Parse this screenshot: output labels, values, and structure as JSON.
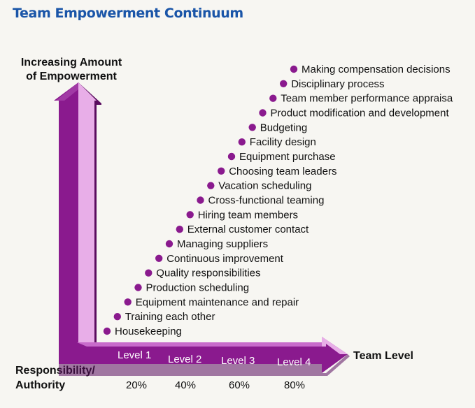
{
  "title": "Team Empowerment Continuum",
  "y_axis_label": [
    "Increasing Amount",
    "of Empowerment"
  ],
  "x_axis_label": "Team Level",
  "corner_label": [
    "Responsibility/",
    "Authority"
  ],
  "levels": [
    "Level 1",
    "Level 2",
    "Level 3",
    "Level 4"
  ],
  "percents": [
    "20%",
    "40%",
    "60%",
    "80%"
  ],
  "items": [
    "Housekeeping",
    "Training each other",
    "Equipment maintenance and repair",
    "Production scheduling",
    "Quality responsibilities",
    "Continuous improvement",
    "Managing suppliers",
    "External customer contact",
    "Hiring team members",
    "Cross-functional teaming",
    "Vacation scheduling",
    "Choosing team leaders",
    "Equipment purchase",
    "Facility design",
    "Budgeting",
    "Product modification and development",
    "Team member performance appraisa",
    "Disciplinary process",
    "Making compensation decisions"
  ],
  "colors": {
    "title": "#1a55a8",
    "arrow": "#8a1a8e",
    "arrow_light": "#e6a6e6",
    "arrow_dark": "#5a0c5e",
    "dot": "#8a1a8e"
  }
}
